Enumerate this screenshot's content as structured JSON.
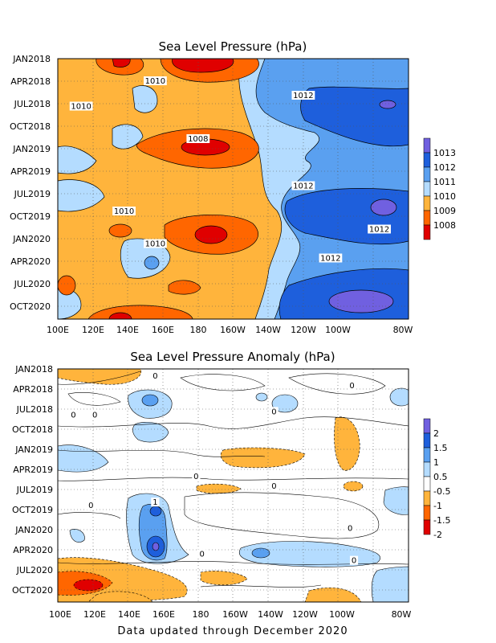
{
  "footer": "Data updated through December 2020",
  "chart_data": [
    {
      "type": "heatmap",
      "title": "Sea Level Pressure (hPa)",
      "xlabel": "",
      "ylabel": "",
      "x_ticks": [
        "100E",
        "120E",
        "140E",
        "160E",
        "180",
        "160W",
        "140W",
        "120W",
        "100W",
        "80W"
      ],
      "y_ticks": [
        "JAN2018",
        "APR2018",
        "JUL2018",
        "OCT2018",
        "JAN2019",
        "APR2019",
        "JUL2019",
        "OCT2019",
        "JAN2020",
        "APR2020",
        "JUL2020",
        "OCT2020"
      ],
      "colorbar": {
        "levels": [
          "1008",
          "1009",
          "1010",
          "1011",
          "1012",
          "1013"
        ],
        "colors": [
          "#e00000",
          "#ff6600",
          "#ffb43c",
          "#b4dcff",
          "#5aa0f0",
          "#1e5fdc",
          "#7060e0"
        ]
      },
      "contour_labels": [
        {
          "text": "1010",
          "lon": 150,
          "month": 3
        },
        {
          "text": "1010",
          "lon": 112,
          "month": 6.5
        },
        {
          "text": "1012",
          "lon": 226,
          "month": 5
        },
        {
          "text": "1008",
          "lon": 172,
          "month": 11
        },
        {
          "text": "1012",
          "lon": 226,
          "month": 17.5
        },
        {
          "text": "1010",
          "lon": 134,
          "month": 21
        },
        {
          "text": "1012",
          "lon": 265,
          "month": 23.5
        },
        {
          "text": "1010",
          "lon": 150,
          "month": 25.5
        },
        {
          "text": "1012",
          "lon": 240,
          "month": 27.5
        }
      ],
      "regions": [
        {
          "lon": [
            100,
            160
          ],
          "months": [
            0,
            35
          ],
          "value": "1010"
        },
        {
          "lon": [
            160,
            200
          ],
          "months": [
            0,
            35
          ],
          "value": "1010"
        },
        {
          "lon": [
            200,
            240
          ],
          "months": [
            0,
            35
          ],
          "value": "1011"
        },
        {
          "lon": [
            240,
            280
          ],
          "months": [
            0,
            35
          ],
          "value": "1012"
        }
      ]
    },
    {
      "type": "heatmap",
      "title": "Sea Level Pressure Anomaly (hPa)",
      "xlabel": "",
      "ylabel": "",
      "x_ticks": [
        "100E",
        "120E",
        "140E",
        "160E",
        "180",
        "160W",
        "140W",
        "120W",
        "100W",
        "80W"
      ],
      "y_ticks": [
        "JAN2018",
        "APR2018",
        "JUL2018",
        "OCT2018",
        "JAN2019",
        "APR2019",
        "JUL2019",
        "OCT2019",
        "JAN2020",
        "APR2020",
        "JUL2020",
        "OCT2020"
      ],
      "colorbar": {
        "levels": [
          "2",
          "1.5",
          "1",
          "0.5",
          "-0.5",
          "-1",
          "-1.5",
          "-2"
        ],
        "colors": [
          "#7060e0",
          "#1e5fdc",
          "#5aa0f0",
          "#b4dcff",
          "#ffffff",
          "#ffb43c",
          "#ff6600",
          "#e00000"
        ]
      },
      "contour_labels": [
        {
          "text": "0",
          "lon": 150,
          "month": 1
        },
        {
          "text": "0",
          "lon": 251,
          "month": 2.5
        },
        {
          "text": "0",
          "lon": 119,
          "month": 7
        },
        {
          "text": "0",
          "lon": 211,
          "month": 6.5
        },
        {
          "text": "0",
          "lon": 108,
          "month": 7
        },
        {
          "text": "0",
          "lon": 171,
          "month": 16.5
        },
        {
          "text": "0",
          "lon": 211,
          "month": 18
        },
        {
          "text": "0",
          "lon": 117,
          "month": 21
        },
        {
          "text": "1",
          "lon": 150,
          "month": 20.5
        },
        {
          "text": "0",
          "lon": 250,
          "month": 24.5
        },
        {
          "text": "0",
          "lon": 174,
          "month": 28.5
        },
        {
          "text": "0",
          "lon": 252,
          "month": 29.5
        }
      ]
    }
  ]
}
